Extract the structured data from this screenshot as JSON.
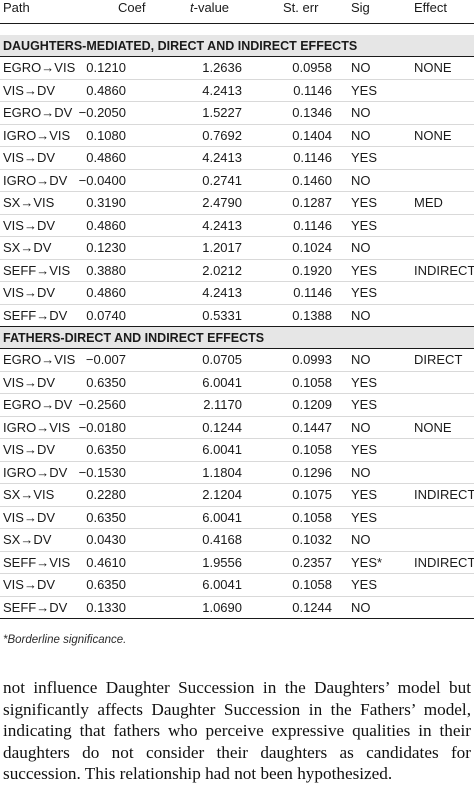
{
  "table": {
    "headers": {
      "path": "Path",
      "coef": "Coef",
      "t_italic": "t",
      "t_rest": "-value",
      "st_err": "St. err",
      "sig": "Sig",
      "effect": "Effect"
    },
    "sections": [
      {
        "title": "DAUGHTERS-MEDIATED, DIRECT AND INDIRECT EFFECTS",
        "rows": [
          {
            "path": "EGRO→VIS",
            "coef": "0.1210",
            "t": "1.2636",
            "se": "0.0958",
            "sig": "NO",
            "effect": "NONE"
          },
          {
            "path": "VIS→DV",
            "coef": "0.4860",
            "t": "4.2413",
            "se": "0.1146",
            "sig": "YES",
            "effect": ""
          },
          {
            "path": "EGRO→DV",
            "coef": "−0.2050",
            "t": "1.5227",
            "se": "0.1346",
            "sig": "NO",
            "effect": ""
          },
          {
            "path": "IGRO→VIS",
            "coef": "0.1080",
            "t": "0.7692",
            "se": "0.1404",
            "sig": "NO",
            "effect": "NONE"
          },
          {
            "path": "VIS→DV",
            "coef": "0.4860",
            "t": "4.2413",
            "se": "0.1146",
            "sig": "YES",
            "effect": ""
          },
          {
            "path": "IGRO→DV",
            "coef": "−0.0400",
            "t": "0.2741",
            "se": "0.1460",
            "sig": "NO",
            "effect": ""
          },
          {
            "path": "SX→VIS",
            "coef": "0.3190",
            "t": "2.4790",
            "se": "0.1287",
            "sig": "YES",
            "effect": "MED"
          },
          {
            "path": "VIS→DV",
            "coef": "0.4860",
            "t": "4.2413",
            "se": "0.1146",
            "sig": "YES",
            "effect": ""
          },
          {
            "path": "SX→DV",
            "coef": "0.1230",
            "t": "1.2017",
            "se": "0.1024",
            "sig": "NO",
            "effect": ""
          },
          {
            "path": "SEFF→VIS",
            "coef": "0.3880",
            "t": "2.0212",
            "se": "0.1920",
            "sig": "YES",
            "effect": "INDIRECT"
          },
          {
            "path": "VIS→DV",
            "coef": "0.4860",
            "t": "4.2413",
            "se": "0.1146",
            "sig": "YES",
            "effect": ""
          },
          {
            "path": "SEFF→DV",
            "coef": "0.0740",
            "t": "0.5331",
            "se": "0.1388",
            "sig": "NO",
            "effect": ""
          }
        ]
      },
      {
        "title": "FATHERS-DIRECT AND INDIRECT EFFECTS",
        "rows": [
          {
            "path": "EGRO→VIS",
            "coef": "−0.007",
            "t": "0.0705",
            "se": "0.0993",
            "sig": "NO",
            "effect": "DIRECT"
          },
          {
            "path": "VIS→DV",
            "coef": "0.6350",
            "t": "6.0041",
            "se": "0.1058",
            "sig": "YES",
            "effect": ""
          },
          {
            "path": "EGRO→DV",
            "coef": "−0.2560",
            "t": "2.1170",
            "se": "0.1209",
            "sig": "YES",
            "effect": ""
          },
          {
            "path": "IGRO→VIS",
            "coef": "−0.0180",
            "t": "0.1244",
            "se": "0.1447",
            "sig": "NO",
            "effect": "NONE"
          },
          {
            "path": "VIS→DV",
            "coef": "0.6350",
            "t": "6.0041",
            "se": "0.1058",
            "sig": "YES",
            "effect": ""
          },
          {
            "path": "IGRO→DV",
            "coef": "−0.1530",
            "t": "1.1804",
            "se": "0.1296",
            "sig": "NO",
            "effect": ""
          },
          {
            "path": "SX→VIS",
            "coef": "0.2280",
            "t": "2.1204",
            "se": "0.1075",
            "sig": "YES",
            "effect": "INDIRECT"
          },
          {
            "path": "VIS→DV",
            "coef": "0.6350",
            "t": "6.0041",
            "se": "0.1058",
            "sig": "YES",
            "effect": ""
          },
          {
            "path": "SX→DV",
            "coef": "0.0430",
            "t": "0.4168",
            "se": "0.1032",
            "sig": "NO",
            "effect": ""
          },
          {
            "path": "SEFF→VIS",
            "coef": "0.4610",
            "t": "1.9556",
            "se": "0.2357",
            "sig": "YES*",
            "effect": "INDIRECT"
          },
          {
            "path": "VIS→DV",
            "coef": "0.6350",
            "t": "6.0041",
            "se": "0.1058",
            "sig": "YES",
            "effect": ""
          },
          {
            "path": "SEFF→DV",
            "coef": "0.1330",
            "t": "1.0690",
            "se": "0.1244",
            "sig": "NO",
            "effect": ""
          }
        ]
      }
    ]
  },
  "footnote": "*Borderline significance.",
  "paragraph": "not influence Daughter Succession in the Daughters’ model but significantly affects Daughter Succession in the Fathers’ model, indicating that fathers who perceive expressive qualities in their daughters do not consider their daughters as candidates for succession. This relationship had not been hypothesized."
}
